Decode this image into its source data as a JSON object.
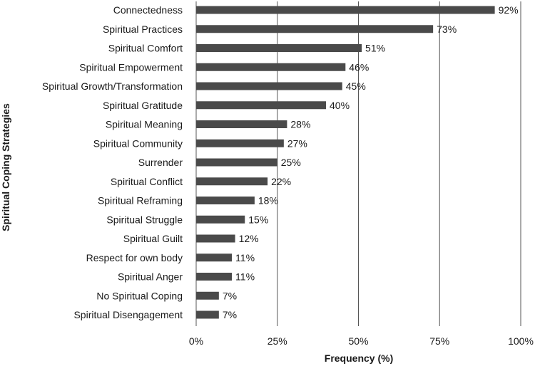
{
  "chart_data": {
    "type": "bar",
    "orientation": "horizontal",
    "categories": [
      "Connectedness",
      "Spiritual Practices",
      "Spiritual Comfort",
      "Spiritual Empowerment",
      "Spiritual Growth/Transformation",
      "Spiritual Gratitude",
      "Spiritual Meaning",
      "Spiritual Community",
      "Surrender",
      "Spiritual Conflict",
      "Spiritual Reframing",
      "Spiritual Struggle",
      "Spiritual Guilt",
      "Respect for own body",
      "Spiritual Anger",
      "No Spiritual Coping",
      "Spiritual Disengagement"
    ],
    "values": [
      92,
      73,
      51,
      46,
      45,
      40,
      28,
      27,
      25,
      22,
      18,
      15,
      12,
      11,
      11,
      7,
      7
    ],
    "value_labels": [
      "92%",
      "73%",
      "51%",
      "46%",
      "45%",
      "40%",
      "28%",
      "27%",
      "25%",
      "22%",
      "18%",
      "15%",
      "12%",
      "11%",
      "11%",
      "7%",
      "7%"
    ],
    "xlabel": "Frequency (%)",
    "ylabel": "Spiritual Coping Strategies",
    "xlim": [
      0,
      100
    ],
    "xticks": [
      0,
      25,
      50,
      75,
      100
    ],
    "xtick_labels": [
      "0%",
      "25%",
      "50%",
      "75%",
      "100%"
    ],
    "grid": "vertical",
    "bar_color": "#4a4a4a"
  }
}
